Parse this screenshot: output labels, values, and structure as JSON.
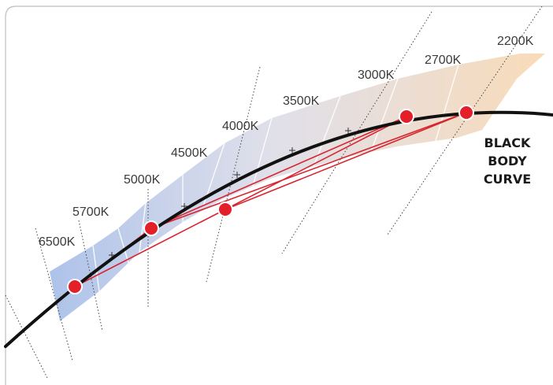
{
  "diagram": {
    "curve_label_lines": [
      "BLACK",
      "BODY",
      "CURVE"
    ],
    "cct_labels": [
      "6500K",
      "5700K",
      "5000K",
      "4500K",
      "4000K",
      "3500K",
      "3000K",
      "2700K",
      "2200K"
    ],
    "colors": {
      "frame": "#bdbdbd",
      "curve": "#111111",
      "point_fill": "#e3202a",
      "point_stroke": "#ffffff",
      "connector": "#d9252f",
      "isotherm": "#444444",
      "band_cool": "#9fb8e6",
      "band_mid": "#d8d8e4",
      "band_warm": "#f9d7b0"
    }
  }
}
